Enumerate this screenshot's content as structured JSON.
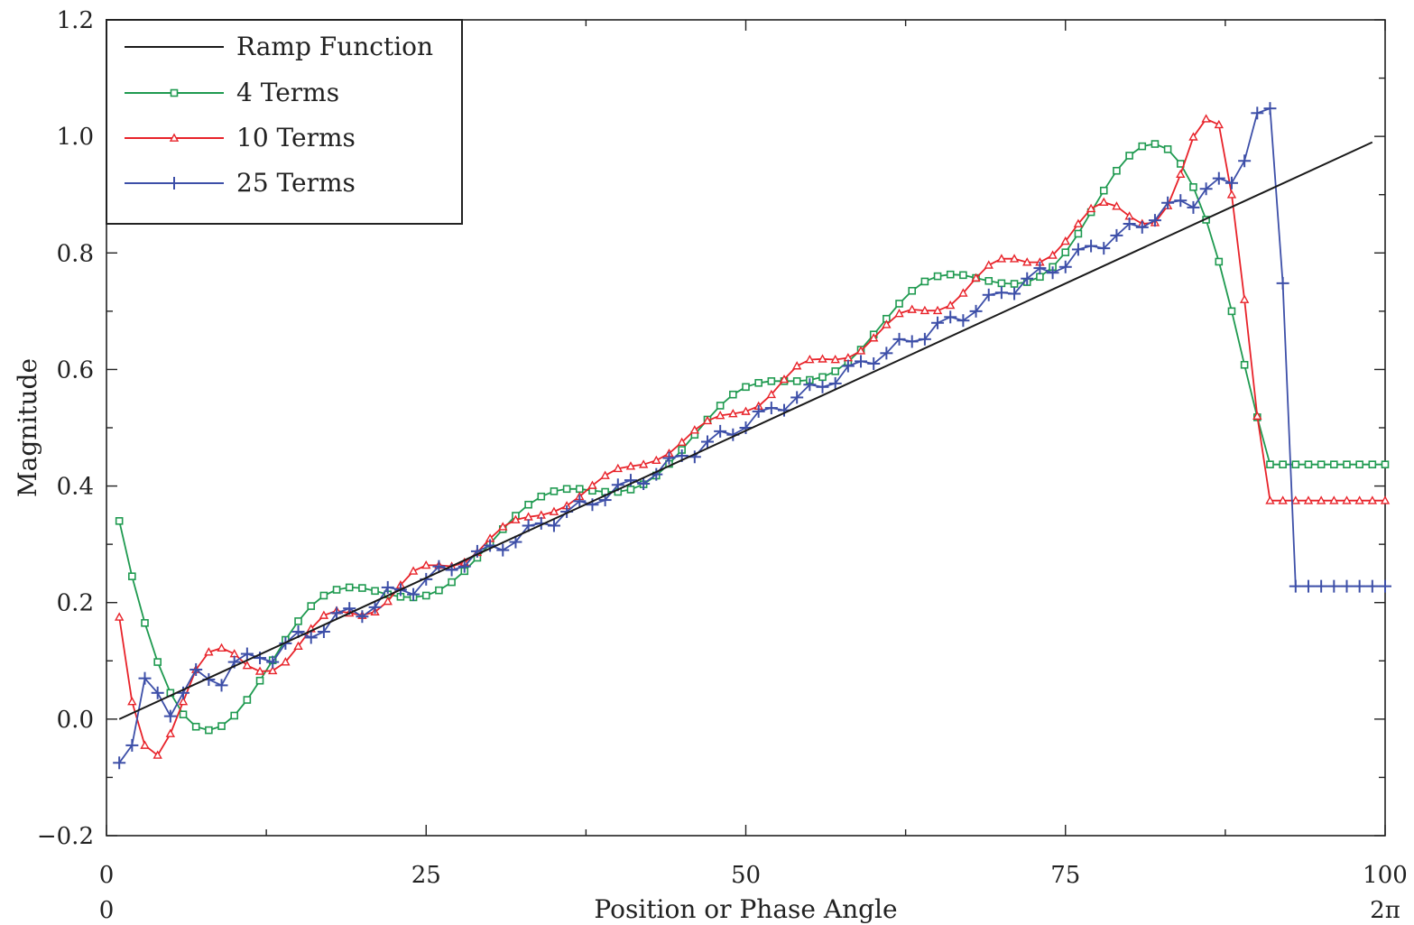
{
  "chart_data": {
    "type": "line",
    "xlabel": "Position or Phase Angle",
    "ylabel": "Magnitude",
    "xlim": [
      0,
      100
    ],
    "ylim": [
      -0.2,
      1.2
    ],
    "x_ticks": [
      0,
      25,
      50,
      75,
      100
    ],
    "x_tick_labels": [
      "0",
      "25",
      "50",
      "75",
      "100"
    ],
    "x_secondary_labels": {
      "left": "0",
      "right": "2π"
    },
    "y_ticks": [
      -0.2,
      0.0,
      0.2,
      0.4,
      0.6,
      0.8,
      1.0,
      1.2
    ],
    "y_tick_labels": [
      "−0.2",
      "0.0",
      "0.2",
      "0.4",
      "0.6",
      "0.8",
      "1.0",
      "1.2"
    ],
    "grid": false,
    "legend_position": "top-left",
    "series": [
      {
        "name": "Ramp Function",
        "color": "#1a1a1a",
        "marker": "none",
        "x": [
          1,
          99
        ],
        "y": [
          0.0,
          0.99
        ]
      },
      {
        "name": "4 Terms",
        "color": "#1f9a50",
        "marker": "square",
        "x": [
          1,
          2,
          3,
          4,
          5,
          6,
          7,
          8,
          9,
          10,
          11,
          12,
          13,
          14,
          15,
          16,
          17,
          18,
          19,
          20,
          21,
          22,
          23,
          24,
          25,
          26,
          27,
          28,
          29,
          30,
          31,
          32,
          33,
          34,
          35,
          36,
          37,
          38,
          39,
          40,
          41,
          42,
          43,
          44,
          45,
          46,
          47,
          48,
          49,
          50,
          51,
          52,
          53,
          54,
          55,
          56,
          57,
          58,
          59,
          60,
          61,
          62,
          63,
          64,
          65,
          66,
          67,
          68,
          69,
          70,
          71,
          72,
          73,
          74,
          75,
          76,
          77,
          78,
          79,
          80,
          81,
          82,
          83,
          84,
          85,
          86,
          87,
          88,
          89,
          90,
          91,
          92,
          93,
          94,
          95,
          96,
          97,
          98,
          99,
          100
        ],
        "y": [
          0.34,
          0.245,
          0.165,
          0.098,
          0.045,
          0.008,
          -0.013,
          -0.019,
          -0.012,
          0.006,
          0.033,
          0.066,
          0.101,
          0.136,
          0.168,
          0.194,
          0.212,
          0.222,
          0.226,
          0.225,
          0.22,
          0.214,
          0.21,
          0.209,
          0.212,
          0.221,
          0.235,
          0.254,
          0.277,
          0.301,
          0.326,
          0.349,
          0.368,
          0.382,
          0.391,
          0.395,
          0.395,
          0.392,
          0.39,
          0.39,
          0.394,
          0.403,
          0.418,
          0.438,
          0.462,
          0.488,
          0.514,
          0.538,
          0.557,
          0.57,
          0.577,
          0.58,
          0.58,
          0.58,
          0.582,
          0.587,
          0.597,
          0.613,
          0.634,
          0.66,
          0.687,
          0.713,
          0.735,
          0.751,
          0.76,
          0.763,
          0.762,
          0.757,
          0.752,
          0.748,
          0.747,
          0.75,
          0.759,
          0.776,
          0.801,
          0.833,
          0.87,
          0.907,
          0.941,
          0.967,
          0.983,
          0.987,
          0.978,
          0.953,
          0.913,
          0.857,
          0.785,
          0.7,
          0.608,
          0.518,
          0.437,
          0.437,
          0.437,
          0.437,
          0.437,
          0.437,
          0.437,
          0.437,
          0.437,
          0.437
        ]
      },
      {
        "name": "10 Terms",
        "color": "#e8232a",
        "marker": "triangle",
        "x": [
          1,
          2,
          3,
          4,
          5,
          6,
          7,
          8,
          9,
          10,
          11,
          12,
          13,
          14,
          15,
          16,
          17,
          18,
          19,
          20,
          21,
          22,
          23,
          24,
          25,
          26,
          27,
          28,
          29,
          30,
          31,
          32,
          33,
          34,
          35,
          36,
          37,
          38,
          39,
          40,
          41,
          42,
          43,
          44,
          45,
          46,
          47,
          48,
          49,
          50,
          51,
          52,
          53,
          54,
          55,
          56,
          57,
          58,
          59,
          60,
          61,
          62,
          63,
          64,
          65,
          66,
          67,
          68,
          69,
          70,
          71,
          72,
          73,
          74,
          75,
          76,
          77,
          78,
          79,
          80,
          81,
          82,
          83,
          84,
          85,
          86,
          87,
          88,
          89,
          90,
          91,
          92,
          93,
          94,
          95,
          96,
          97,
          98,
          99,
          100
        ],
        "y": [
          0.175,
          0.03,
          -0.045,
          -0.062,
          -0.025,
          0.03,
          0.085,
          0.115,
          0.122,
          0.112,
          0.092,
          0.082,
          0.083,
          0.098,
          0.125,
          0.155,
          0.178,
          0.186,
          0.182,
          0.178,
          0.184,
          0.202,
          0.23,
          0.254,
          0.264,
          0.264,
          0.262,
          0.269,
          0.286,
          0.31,
          0.33,
          0.342,
          0.347,
          0.35,
          0.356,
          0.366,
          0.382,
          0.401,
          0.418,
          0.43,
          0.434,
          0.437,
          0.444,
          0.456,
          0.475,
          0.496,
          0.512,
          0.521,
          0.524,
          0.528,
          0.537,
          0.557,
          0.583,
          0.606,
          0.617,
          0.618,
          0.617,
          0.62,
          0.632,
          0.654,
          0.677,
          0.696,
          0.703,
          0.701,
          0.701,
          0.71,
          0.731,
          0.757,
          0.779,
          0.79,
          0.79,
          0.784,
          0.784,
          0.796,
          0.82,
          0.85,
          0.876,
          0.887,
          0.88,
          0.863,
          0.85,
          0.852,
          0.881,
          0.935,
          0.999,
          1.03,
          1.02,
          0.9,
          0.72,
          0.52,
          0.375,
          0.375,
          0.375,
          0.375,
          0.375,
          0.375,
          0.375,
          0.375,
          0.375,
          0.375
        ]
      },
      {
        "name": "25 Terms",
        "color": "#3d4fa8",
        "marker": "plus",
        "x": [
          1,
          2,
          3,
          4,
          5,
          6,
          7,
          8,
          9,
          10,
          11,
          12,
          13,
          14,
          15,
          16,
          17,
          18,
          19,
          20,
          21,
          22,
          23,
          24,
          25,
          26,
          27,
          28,
          29,
          30,
          31,
          32,
          33,
          34,
          35,
          36,
          37,
          38,
          39,
          40,
          41,
          42,
          43,
          44,
          45,
          46,
          47,
          48,
          49,
          50,
          51,
          52,
          53,
          54,
          55,
          56,
          57,
          58,
          59,
          60,
          61,
          62,
          63,
          64,
          65,
          66,
          67,
          68,
          69,
          70,
          71,
          72,
          73,
          74,
          75,
          76,
          77,
          78,
          79,
          80,
          81,
          82,
          83,
          84,
          85,
          86,
          87,
          88,
          89,
          90,
          91,
          92,
          93,
          94,
          95,
          96,
          97,
          98,
          99,
          100
        ],
        "y": [
          -0.075,
          -0.045,
          0.07,
          0.045,
          0.005,
          0.045,
          0.085,
          0.068,
          0.058,
          0.098,
          0.112,
          0.105,
          0.098,
          0.13,
          0.15,
          0.14,
          0.15,
          0.182,
          0.19,
          0.176,
          0.192,
          0.226,
          0.222,
          0.214,
          0.24,
          0.262,
          0.256,
          0.262,
          0.288,
          0.298,
          0.29,
          0.304,
          0.332,
          0.336,
          0.332,
          0.356,
          0.374,
          0.368,
          0.376,
          0.402,
          0.41,
          0.404,
          0.42,
          0.448,
          0.452,
          0.45,
          0.476,
          0.494,
          0.488,
          0.5,
          0.528,
          0.534,
          0.53,
          0.552,
          0.574,
          0.57,
          0.576,
          0.606,
          0.614,
          0.61,
          0.628,
          0.652,
          0.648,
          0.652,
          0.68,
          0.69,
          0.684,
          0.7,
          0.728,
          0.732,
          0.73,
          0.756,
          0.774,
          0.766,
          0.776,
          0.806,
          0.812,
          0.808,
          0.83,
          0.85,
          0.844,
          0.856,
          0.886,
          0.89,
          0.878,
          0.91,
          0.928,
          0.92,
          0.958,
          1.04,
          1.048,
          0.748,
          0.228,
          0.228,
          0.228,
          0.228,
          0.228,
          0.228,
          0.228,
          0.228
        ]
      }
    ]
  }
}
